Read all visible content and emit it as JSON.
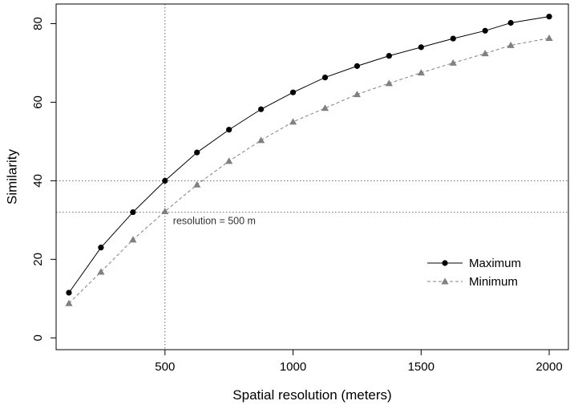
{
  "chart_data": {
    "type": "line",
    "xlabel": "Spatial resolution (meters)",
    "ylabel": "Similarity",
    "xlim": [
      75,
      2075
    ],
    "ylim": [
      -3,
      85
    ],
    "x_ticks": [
      500,
      1000,
      1500,
      2000
    ],
    "y_ticks": [
      0,
      20,
      40,
      60,
      80
    ],
    "grid": false,
    "legend_position": "center-right",
    "x": [
      125,
      250,
      375,
      500,
      625,
      750,
      875,
      1000,
      1125,
      1250,
      1375,
      1500,
      1625,
      1750,
      1850,
      2000
    ],
    "series": [
      {
        "name": "Maximum",
        "marker": "circle",
        "line_style": "solid",
        "color": "#000000",
        "values": [
          11.5,
          23,
          32,
          40,
          47.2,
          53,
          58.2,
          62.5,
          66.3,
          69.2,
          71.8,
          74,
          76.2,
          78.2,
          80.2,
          81.8
        ]
      },
      {
        "name": "Minimum",
        "marker": "triangle",
        "line_style": "dashed",
        "color": "#808080",
        "values": [
          8.8,
          16.8,
          25,
          32.2,
          39,
          45,
          50.3,
          55,
          58.5,
          62,
          64.8,
          67.5,
          70,
          72.4,
          74.5,
          76.3
        ]
      }
    ],
    "reference_lines": {
      "vertical": [
        500
      ],
      "horizontal": [
        40,
        32
      ]
    },
    "annotation": "resolution = 500 m"
  }
}
